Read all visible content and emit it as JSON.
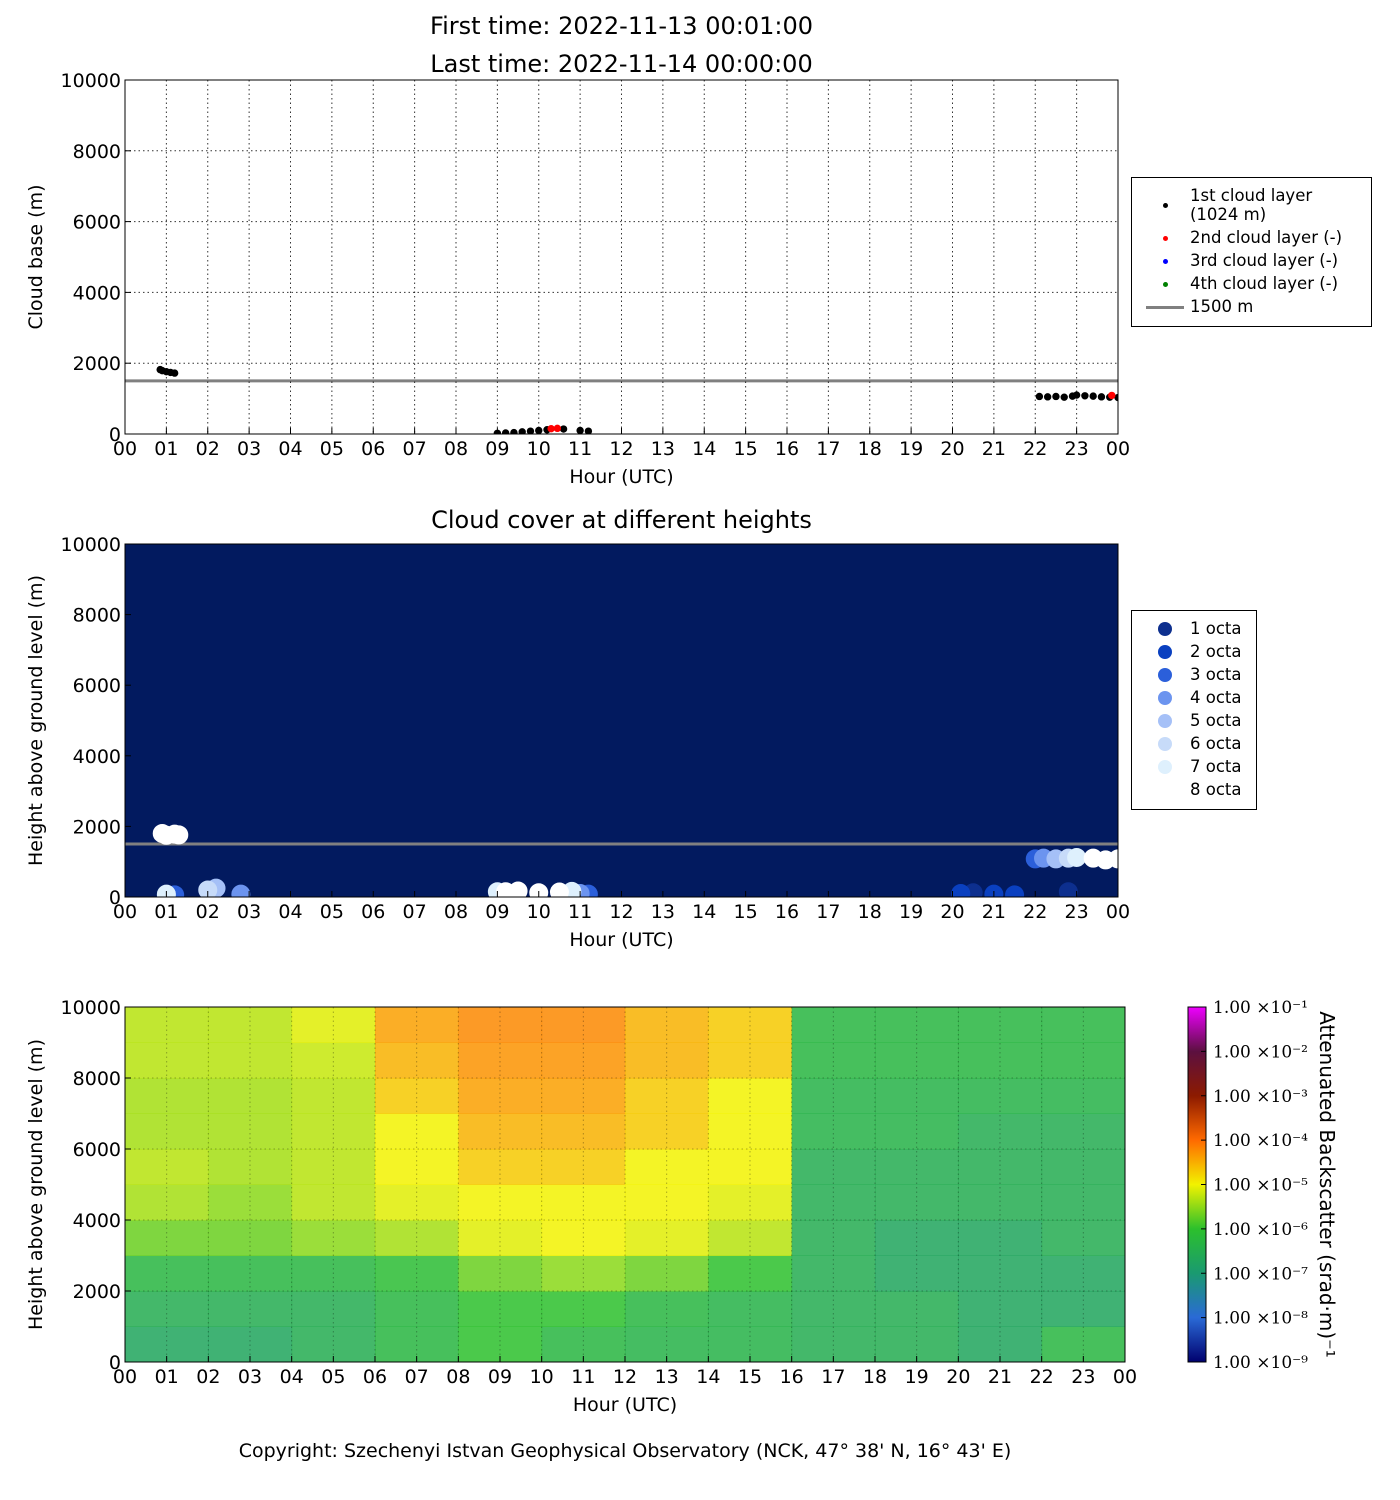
{
  "chart_data": [
    {
      "type": "scatter",
      "title": "First time: 2022-11-13 00:01:00",
      "subtitle": "Last time: 2022-11-14 00:00:00",
      "xlabel": "Hour (UTC)",
      "ylabel": "Cloud base (m)",
      "xlim": [
        0,
        24
      ],
      "ylim": [
        0,
        10000
      ],
      "xticks": [
        {
          "value": 0,
          "label": "00"
        },
        {
          "value": 1,
          "label": "01"
        },
        {
          "value": 2,
          "label": "02"
        },
        {
          "value": 3,
          "label": "03"
        },
        {
          "value": 4,
          "label": "04"
        },
        {
          "value": 5,
          "label": "05"
        },
        {
          "value": 6,
          "label": "06"
        },
        {
          "value": 7,
          "label": "07"
        },
        {
          "value": 8,
          "label": "08"
        },
        {
          "value": 9,
          "label": "09"
        },
        {
          "value": 10,
          "label": "10"
        },
        {
          "value": 11,
          "label": "11"
        },
        {
          "value": 12,
          "label": "12"
        },
        {
          "value": 13,
          "label": "13"
        },
        {
          "value": 14,
          "label": "14"
        },
        {
          "value": 15,
          "label": "15"
        },
        {
          "value": 16,
          "label": "16"
        },
        {
          "value": 17,
          "label": "17"
        },
        {
          "value": 18,
          "label": "18"
        },
        {
          "value": 19,
          "label": "19"
        },
        {
          "value": 20,
          "label": "20"
        },
        {
          "value": 21,
          "label": "21"
        },
        {
          "value": 22,
          "label": "22"
        },
        {
          "value": 23,
          "label": "23"
        },
        {
          "value": 24,
          "label": "00"
        }
      ],
      "yticks": [
        0,
        2000,
        4000,
        6000,
        8000,
        10000
      ],
      "grid": true,
      "legend": "outside right",
      "background": "#ffffff",
      "series": [
        {
          "name": "1st cloud layer (1024 m)",
          "color": "#000000",
          "x": [
            0.85,
            0.9,
            1.0,
            1.1,
            1.2,
            9.0,
            9.2,
            9.4,
            9.6,
            9.8,
            10.0,
            10.2,
            10.6,
            11.0,
            11.2,
            22.1,
            22.3,
            22.5,
            22.7,
            22.9,
            23.0,
            23.2,
            23.4,
            23.6,
            23.8,
            24.0
          ],
          "values": [
            1820,
            1790,
            1760,
            1740,
            1720,
            20,
            30,
            40,
            60,
            80,
            100,
            120,
            140,
            100,
            80,
            1060,
            1050,
            1060,
            1040,
            1070,
            1100,
            1080,
            1070,
            1050,
            1040,
            1030
          ]
        },
        {
          "name": "2nd cloud layer (-)",
          "color": "#ff0000",
          "x": [
            10.3,
            10.45,
            23.85
          ],
          "values": [
            150,
            160,
            1090
          ]
        },
        {
          "name": "3rd cloud layer (-)",
          "color": "#0000ff",
          "x": [],
          "values": []
        },
        {
          "name": "4th cloud layer (-)",
          "color": "#008000",
          "x": [],
          "values": []
        }
      ],
      "hlines": [
        {
          "value": 1500,
          "label": "1500 m",
          "color": "#808080"
        }
      ]
    },
    {
      "type": "scatter",
      "title": "Cloud cover at different heights",
      "xlabel": "Hour (UTC)",
      "ylabel": "Height above ground level (m)",
      "xlim": [
        0,
        24
      ],
      "ylim": [
        0,
        10000
      ],
      "xticks": [
        {
          "value": 0,
          "label": "00"
        },
        {
          "value": 1,
          "label": "01"
        },
        {
          "value": 2,
          "label": "02"
        },
        {
          "value": 3,
          "label": "03"
        },
        {
          "value": 4,
          "label": "04"
        },
        {
          "value": 5,
          "label": "05"
        },
        {
          "value": 6,
          "label": "06"
        },
        {
          "value": 7,
          "label": "07"
        },
        {
          "value": 8,
          "label": "08"
        },
        {
          "value": 9,
          "label": "09"
        },
        {
          "value": 10,
          "label": "10"
        },
        {
          "value": 11,
          "label": "11"
        },
        {
          "value": 12,
          "label": "12"
        },
        {
          "value": 13,
          "label": "13"
        },
        {
          "value": 14,
          "label": "14"
        },
        {
          "value": 15,
          "label": "15"
        },
        {
          "value": 16,
          "label": "16"
        },
        {
          "value": 17,
          "label": "17"
        },
        {
          "value": 18,
          "label": "18"
        },
        {
          "value": 19,
          "label": "19"
        },
        {
          "value": 20,
          "label": "20"
        },
        {
          "value": 21,
          "label": "21"
        },
        {
          "value": 22,
          "label": "22"
        },
        {
          "value": 23,
          "label": "23"
        },
        {
          "value": 24,
          "label": "00"
        }
      ],
      "yticks": [
        0,
        2000,
        4000,
        6000,
        8000,
        10000
      ],
      "grid": false,
      "legend": "outside right",
      "background": "#021a5f",
      "series": [
        {
          "name": "1 octa",
          "color": "#0d2f8e",
          "x": [
            20.5,
            22.8
          ],
          "values": [
            120,
            150
          ]
        },
        {
          "name": "2 octa",
          "color": "#0a40c0",
          "x": [
            20.2,
            21.0,
            21.5
          ],
          "values": [
            100,
            80,
            60
          ]
        },
        {
          "name": "3 octa",
          "color": "#2b5fda",
          "x": [
            1.2,
            11.2,
            22.0
          ],
          "values": [
            60,
            80,
            1080
          ]
        },
        {
          "name": "4 octa",
          "color": "#6c94ef",
          "x": [
            1.0,
            2.8,
            11.0,
            22.2
          ],
          "values": [
            50,
            80,
            100,
            1100
          ]
        },
        {
          "name": "5 octa",
          "color": "#a5c0f7",
          "x": [
            2.2,
            22.5
          ],
          "values": [
            250,
            1080
          ]
        },
        {
          "name": "6 octa",
          "color": "#c7dbf9",
          "x": [
            2.0,
            22.8
          ],
          "values": [
            200,
            1100
          ]
        },
        {
          "name": "7 octa",
          "color": "#def0fd",
          "x": [
            1.0,
            9.0,
            10.8,
            23.0
          ],
          "values": [
            80,
            150,
            160,
            1120
          ]
        },
        {
          "name": "8 octa",
          "color": "#ffffff",
          "x": [
            0.9,
            1.0,
            1.2,
            1.3,
            9.2,
            9.5,
            10.0,
            10.5,
            23.4,
            23.7,
            24.0
          ],
          "values": [
            1800,
            1750,
            1780,
            1760,
            150,
            170,
            120,
            140,
            1100,
            1050,
            1080
          ]
        }
      ],
      "hlines": [
        {
          "value": 1500,
          "color": "#808080"
        }
      ]
    },
    {
      "type": "heatmap",
      "xlabel": "Hour (UTC)",
      "ylabel": "Height above ground level (m)",
      "xlim": [
        0,
        24
      ],
      "ylim": [
        0,
        10000
      ],
      "xticks": [
        {
          "value": 0,
          "label": "00"
        },
        {
          "value": 1,
          "label": "01"
        },
        {
          "value": 2,
          "label": "02"
        },
        {
          "value": 3,
          "label": "03"
        },
        {
          "value": 4,
          "label": "04"
        },
        {
          "value": 5,
          "label": "05"
        },
        {
          "value": 6,
          "label": "06"
        },
        {
          "value": 7,
          "label": "07"
        },
        {
          "value": 8,
          "label": "08"
        },
        {
          "value": 9,
          "label": "09"
        },
        {
          "value": 10,
          "label": "10"
        },
        {
          "value": 11,
          "label": "11"
        },
        {
          "value": 12,
          "label": "12"
        },
        {
          "value": 13,
          "label": "13"
        },
        {
          "value": 14,
          "label": "14"
        },
        {
          "value": 15,
          "label": "15"
        },
        {
          "value": 16,
          "label": "16"
        },
        {
          "value": 17,
          "label": "17"
        },
        {
          "value": 18,
          "label": "18"
        },
        {
          "value": 19,
          "label": "19"
        },
        {
          "value": 20,
          "label": "20"
        },
        {
          "value": 21,
          "label": "21"
        },
        {
          "value": 22,
          "label": "22"
        },
        {
          "value": 23,
          "label": "23"
        },
        {
          "value": 24,
          "label": "00"
        }
      ],
      "yticks": [
        0,
        2000,
        4000,
        6000,
        8000,
        10000
      ],
      "grid": true,
      "background": "#ffffff",
      "xbins": [
        0,
        2,
        4,
        6,
        8,
        10,
        12,
        14,
        16,
        18,
        20,
        22,
        24
      ],
      "ybins": [
        0,
        1000,
        2000,
        3000,
        4000,
        5000,
        6000,
        7000,
        8000,
        9000,
        10000
      ],
      "values": [
        [
          2e-07,
          2e-07,
          3e-07,
          5e-07,
          1e-06,
          5e-07,
          4e-07,
          4e-07,
          3e-07,
          3e-07,
          2e-07,
          5e-07
        ],
        [
          3e-07,
          3e-07,
          3e-07,
          5e-07,
          1e-06,
          1e-06,
          5e-07,
          4e-07,
          3e-07,
          3e-07,
          2e-07,
          2e-07
        ],
        [
          5e-07,
          5e-07,
          5e-07,
          8e-07,
          2e-06,
          3e-06,
          2e-06,
          1e-06,
          3e-07,
          2e-07,
          2e-07,
          2e-07
        ],
        [
          2e-06,
          2e-06,
          3e-06,
          4e-06,
          8e-06,
          1e-05,
          8e-06,
          5e-06,
          3e-07,
          2e-07,
          2e-07,
          3e-07
        ],
        [
          4e-06,
          3e-06,
          5e-06,
          8e-06,
          1e-05,
          1e-05,
          1e-05,
          8e-06,
          3e-07,
          3e-07,
          3e-07,
          3e-07
        ],
        [
          5e-06,
          4e-06,
          5e-06,
          1e-05,
          2e-05,
          2e-05,
          1e-05,
          1e-05,
          3e-07,
          3e-07,
          3e-07,
          3e-07
        ],
        [
          4e-06,
          4e-06,
          5e-06,
          1e-05,
          3e-05,
          3e-05,
          2e-05,
          1e-05,
          4e-07,
          4e-07,
          3e-07,
          3e-07
        ],
        [
          4e-06,
          4e-06,
          5e-06,
          2e-05,
          4e-05,
          4e-05,
          2e-05,
          1e-05,
          4e-07,
          4e-07,
          4e-07,
          4e-07
        ],
        [
          5e-06,
          5e-06,
          6e-06,
          3e-05,
          5e-05,
          5e-05,
          3e-05,
          2e-05,
          5e-07,
          5e-07,
          5e-07,
          5e-07
        ],
        [
          5e-06,
          5e-06,
          8e-06,
          4e-05,
          6e-05,
          6e-05,
          3e-05,
          2e-05,
          5e-07,
          5e-07,
          5e-07,
          5e-07
        ]
      ],
      "zlim": [
        1e-09,
        0.1
      ],
      "zscale": "log",
      "colormap": [
        "#00006e",
        "#2a6ad6",
        "#1a9a70",
        "#2cc02c",
        "#f2f200",
        "#ff6a00",
        "#8c1a00",
        "#5c1040",
        "#ee00ff"
      ],
      "zlabel": "Attenuated Backscatter (srad·m)⁻¹",
      "zticks": [
        {
          "value": 1e-09,
          "label": "1.00 ×10⁻⁹"
        },
        {
          "value": 1e-08,
          "label": "1.00 ×10⁻⁸"
        },
        {
          "value": 1e-07,
          "label": "1.00 ×10⁻⁷"
        },
        {
          "value": 1e-06,
          "label": "1.00 ×10⁻⁶"
        },
        {
          "value": 1e-05,
          "label": "1.00 ×10⁻⁵"
        },
        {
          "value": 0.0001,
          "label": "1.00 ×10⁻⁴"
        },
        {
          "value": 0.001,
          "label": "1.00 ×10⁻³"
        },
        {
          "value": 0.01,
          "label": "1.00 ×10⁻²"
        },
        {
          "value": 0.1,
          "label": "1.00 ×10⁻¹"
        }
      ]
    }
  ],
  "footer": "Copyright: Szechenyi Istvan Geophysical Observatory (NCK, 47° 38' N, 16° 43' E)"
}
